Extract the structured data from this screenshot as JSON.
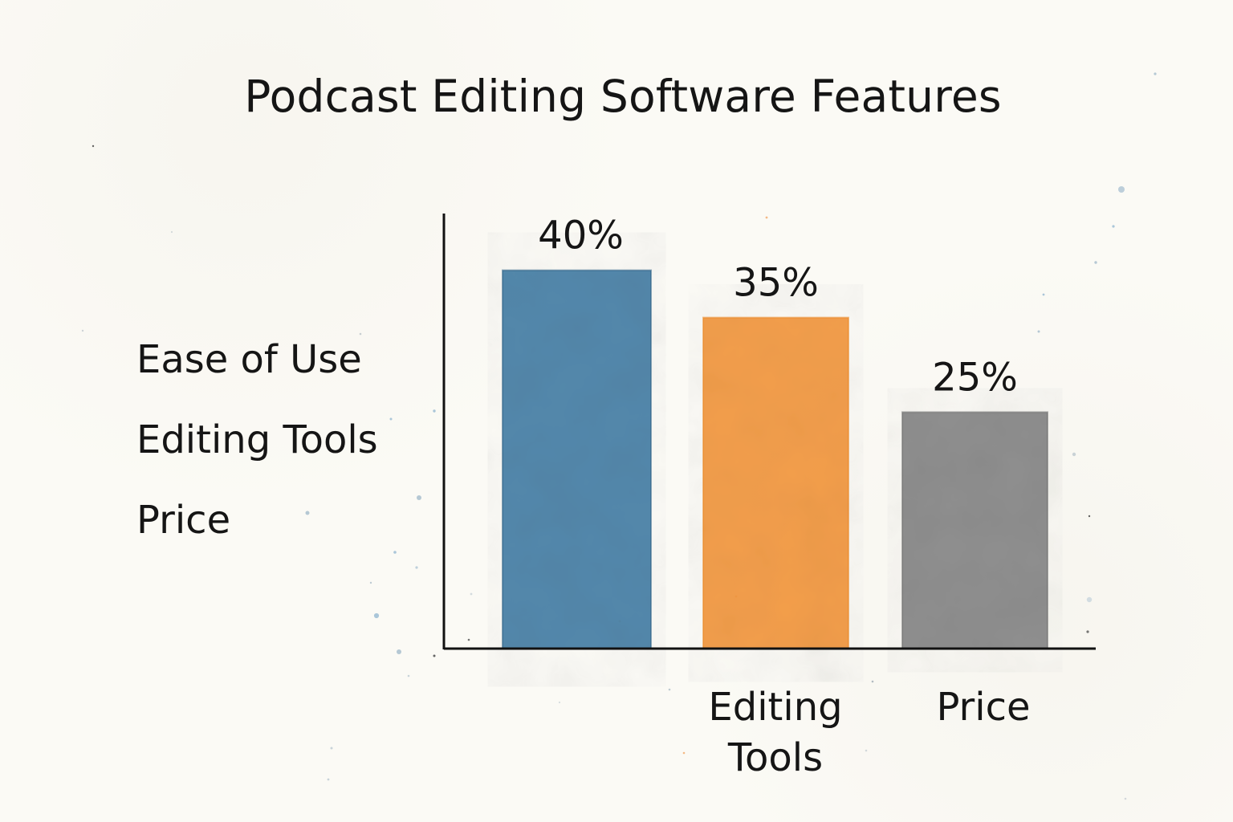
{
  "chart_data": {
    "type": "bar",
    "title": "Podcast Editing Software Features",
    "legend_entries": [
      "Ease of Use",
      "Editing Tools",
      "Price"
    ],
    "legend_position": "left",
    "categories": [
      "",
      "Editing Tools",
      "Price"
    ],
    "values": [
      40,
      35,
      25
    ],
    "value_labels": [
      "40%",
      "35%",
      "25%"
    ],
    "colors": [
      "#4b82a8",
      "#f39a43",
      "#8a8a8a"
    ],
    "ylim": [
      0,
      46
    ],
    "grid": false,
    "xlabel": "",
    "ylabel": ""
  }
}
